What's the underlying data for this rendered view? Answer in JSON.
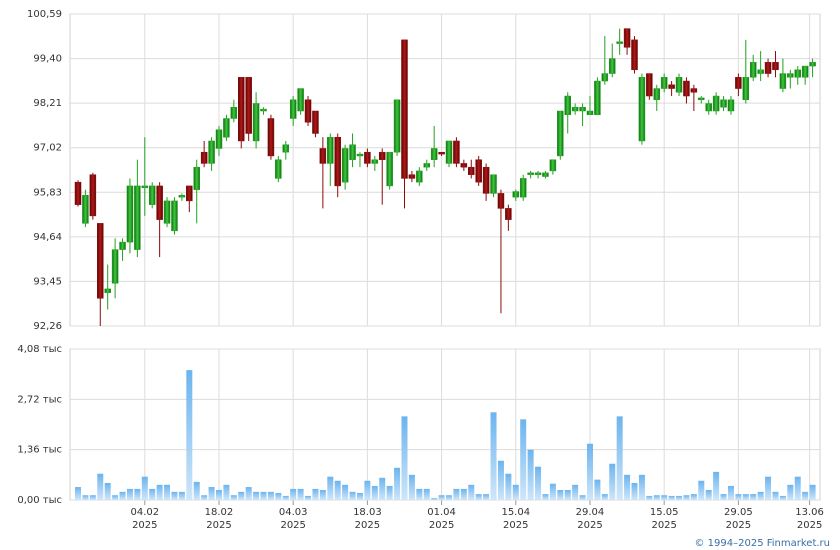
{
  "chart_data": [
    {
      "type": "candlestick",
      "up_color": "#22a022",
      "down_color": "#8b0a0a",
      "grid": true,
      "ylim": [
        92.26,
        100.59
      ],
      "yticks": [
        {
          "value": 92.26,
          "label": "92,26"
        },
        {
          "value": 93.45,
          "label": "93,45"
        },
        {
          "value": 94.64,
          "label": "94,64"
        },
        {
          "value": 95.83,
          "label": "95,83"
        },
        {
          "value": 97.02,
          "label": "97,02"
        },
        {
          "value": 98.21,
          "label": "98,21"
        },
        {
          "value": 99.4,
          "label": "99,40"
        },
        {
          "value": 100.59,
          "label": "100,59"
        }
      ],
      "xlim": [
        -1.08,
        100
      ],
      "xticks": [
        {
          "value": 9,
          "label": "04.02",
          "year": "2025"
        },
        {
          "value": 19,
          "label": "18.02",
          "year": "2025"
        },
        {
          "value": 29,
          "label": "04.03",
          "year": "2025"
        },
        {
          "value": 39,
          "label": "18.03",
          "year": "2025"
        },
        {
          "value": 49,
          "label": "01.04",
          "year": "2025"
        },
        {
          "value": 59,
          "label": "15.04",
          "year": "2025"
        },
        {
          "value": 69,
          "label": "29.04",
          "year": "2025"
        },
        {
          "value": 79,
          "label": "15.05",
          "year": "2025"
        },
        {
          "value": 89,
          "label": "29.05",
          "year": "2025"
        },
        {
          "value": 98.6,
          "label": "13.06",
          "year": "2025"
        }
      ],
      "open": [
        96.1,
        95.0,
        96.3,
        95.0,
        93.15,
        93.4,
        94.3,
        94.5,
        94.3,
        95.95,
        95.5,
        96.0,
        95.0,
        94.8,
        95.7,
        96.0,
        95.9,
        96.9,
        96.6,
        97.0,
        97.3,
        97.8,
        98.9,
        98.9,
        97.2,
        98.0,
        97.8,
        96.2,
        96.9,
        97.8,
        98.0,
        98.3,
        98.0,
        97.0,
        96.6,
        97.3,
        96.1,
        96.7,
        96.8,
        96.9,
        96.6,
        96.9,
        96.0,
        96.9,
        99.9,
        96.3,
        96.1,
        96.5,
        96.7,
        96.9,
        96.6,
        97.2,
        96.6,
        96.5,
        96.7,
        96.5,
        95.8,
        95.8,
        95.4,
        95.7,
        95.7,
        96.3,
        96.3,
        96.25,
        96.4,
        96.8,
        97.9,
        98.0,
        98.0,
        97.9,
        97.9,
        98.8,
        99.0,
        99.8,
        100.2,
        99.9,
        97.2,
        99.0,
        98.3,
        98.6,
        98.7,
        98.5,
        98.8,
        98.6,
        98.3,
        98.0,
        98.0,
        98.1,
        98.0,
        98.9,
        98.3,
        98.9,
        99.0,
        99.3,
        99.3,
        98.6,
        98.9,
        98.9,
        98.9,
        99.2
      ],
      "high": [
        96.15,
        95.9,
        96.35,
        95.0,
        93.9,
        94.6,
        94.6,
        96.2,
        96.7,
        97.3,
        96.1,
        96.1,
        95.7,
        95.7,
        95.8,
        96.0,
        96.7,
        97.2,
        97.3,
        97.6,
        97.9,
        98.3,
        98.9,
        98.9,
        98.5,
        98.1,
        97.9,
        96.8,
        97.2,
        98.4,
        98.6,
        98.4,
        98.0,
        97.3,
        97.4,
        97.4,
        97.1,
        97.4,
        96.9,
        97.0,
        96.8,
        97.0,
        96.9,
        98.3,
        99.9,
        96.4,
        96.5,
        96.7,
        97.6,
        96.9,
        97.2,
        97.3,
        96.7,
        96.7,
        96.8,
        96.6,
        96.3,
        95.9,
        95.5,
        95.9,
        96.3,
        96.4,
        96.4,
        96.4,
        96.7,
        98.0,
        98.5,
        98.2,
        98.2,
        98.4,
        98.9,
        100.0,
        99.8,
        100.2,
        100.2,
        100.0,
        99.0,
        99.0,
        98.7,
        99.0,
        98.8,
        99.0,
        98.9,
        98.7,
        98.4,
        98.3,
        98.5,
        98.4,
        98.4,
        99.0,
        99.9,
        99.5,
        99.6,
        99.4,
        99.6,
        99.4,
        99.1,
        99.2,
        99.2,
        99.4
      ],
      "low": [
        95.45,
        94.9,
        95.1,
        92.26,
        92.7,
        93.0,
        94.0,
        94.2,
        94.1,
        95.2,
        95.4,
        94.1,
        94.9,
        94.7,
        95.6,
        95.3,
        95.0,
        96.5,
        96.4,
        96.8,
        97.2,
        97.7,
        97.0,
        97.2,
        97.0,
        97.9,
        96.7,
        96.1,
        96.7,
        97.6,
        97.9,
        97.6,
        97.3,
        95.4,
        96.0,
        95.7,
        95.9,
        96.5,
        96.5,
        96.5,
        96.4,
        95.5,
        95.9,
        96.8,
        95.4,
        96.1,
        96.0,
        96.4,
        96.5,
        96.8,
        96.5,
        96.5,
        96.4,
        96.2,
        96.0,
        95.6,
        95.7,
        92.6,
        94.8,
        95.6,
        95.6,
        96.2,
        96.2,
        96.2,
        96.3,
        96.7,
        97.4,
        97.9,
        97.6,
        97.9,
        97.9,
        98.7,
        98.9,
        99.5,
        99.5,
        99.0,
        97.1,
        98.3,
        98.0,
        98.5,
        98.4,
        98.4,
        98.2,
        98.0,
        98.2,
        97.9,
        97.9,
        98.0,
        97.9,
        98.4,
        98.2,
        98.8,
        98.8,
        98.9,
        98.9,
        98.5,
        98.6,
        98.7,
        98.7,
        98.9
      ],
      "close": [
        95.5,
        95.75,
        95.2,
        93.0,
        93.25,
        94.3,
        94.5,
        96.0,
        96.0,
        96.0,
        96.0,
        95.1,
        95.6,
        95.6,
        95.75,
        95.6,
        96.5,
        96.6,
        97.2,
        97.5,
        97.8,
        98.1,
        97.2,
        97.4,
        98.2,
        98.05,
        96.8,
        96.7,
        97.1,
        98.3,
        98.6,
        97.7,
        97.4,
        96.6,
        97.3,
        96.0,
        97.0,
        97.1,
        96.85,
        96.6,
        96.7,
        96.7,
        96.9,
        98.3,
        96.2,
        96.2,
        96.4,
        96.6,
        97.0,
        96.85,
        97.2,
        96.6,
        96.5,
        96.3,
        96.1,
        95.8,
        96.3,
        95.4,
        95.1,
        95.85,
        96.2,
        96.35,
        96.35,
        96.35,
        96.7,
        98.0,
        98.4,
        98.1,
        98.1,
        98.0,
        98.8,
        99.0,
        99.4,
        99.85,
        99.7,
        99.1,
        98.9,
        98.4,
        98.6,
        98.9,
        98.6,
        98.9,
        98.4,
        98.5,
        98.35,
        98.2,
        98.4,
        98.3,
        98.3,
        98.6,
        98.9,
        99.3,
        99.1,
        99.0,
        99.1,
        99.0,
        99.0,
        99.1,
        99.2,
        99.3
      ]
    },
    {
      "type": "bar",
      "color": "#8cc4f0",
      "grid": true,
      "ylim": [
        0,
        4.08
      ],
      "yticks": [
        {
          "value": 0,
          "label": "0,00 тыс"
        },
        {
          "value": 1.36,
          "label": "1,36 тыс"
        },
        {
          "value": 2.72,
          "label": "2,72 тыс"
        },
        {
          "value": 4.08,
          "label": "4,08 тыс"
        }
      ],
      "values": [
        0.35,
        0.13,
        0.13,
        0.71,
        0.46,
        0.13,
        0.22,
        0.3,
        0.3,
        0.63,
        0.3,
        0.41,
        0.41,
        0.22,
        0.22,
        3.51,
        0.49,
        0.13,
        0.35,
        0.27,
        0.41,
        0.13,
        0.22,
        0.35,
        0.22,
        0.22,
        0.22,
        0.19,
        0.11,
        0.3,
        0.3,
        0.11,
        0.3,
        0.27,
        0.63,
        0.52,
        0.41,
        0.22,
        0.19,
        0.52,
        0.38,
        0.6,
        0.38,
        0.87,
        2.26,
        0.68,
        0.3,
        0.3,
        0.05,
        0.13,
        0.13,
        0.3,
        0.3,
        0.41,
        0.16,
        0.16,
        2.37,
        1.06,
        0.71,
        0.41,
        2.18,
        1.36,
        0.9,
        0.16,
        0.44,
        0.27,
        0.27,
        0.41,
        0.13,
        1.52,
        0.55,
        0.16,
        0.98,
        2.26,
        0.68,
        0.46,
        0.68,
        0.11,
        0.13,
        0.13,
        0.11,
        0.11,
        0.13,
        0.16,
        0.52,
        0.27,
        0.76,
        0.16,
        0.38,
        0.16,
        0.16,
        0.16,
        0.22,
        0.63,
        0.22,
        0.11,
        0.41,
        0.63,
        0.22,
        0.41
      ]
    }
  ],
  "credit": "© 1994–2025 Finmarket.ru"
}
